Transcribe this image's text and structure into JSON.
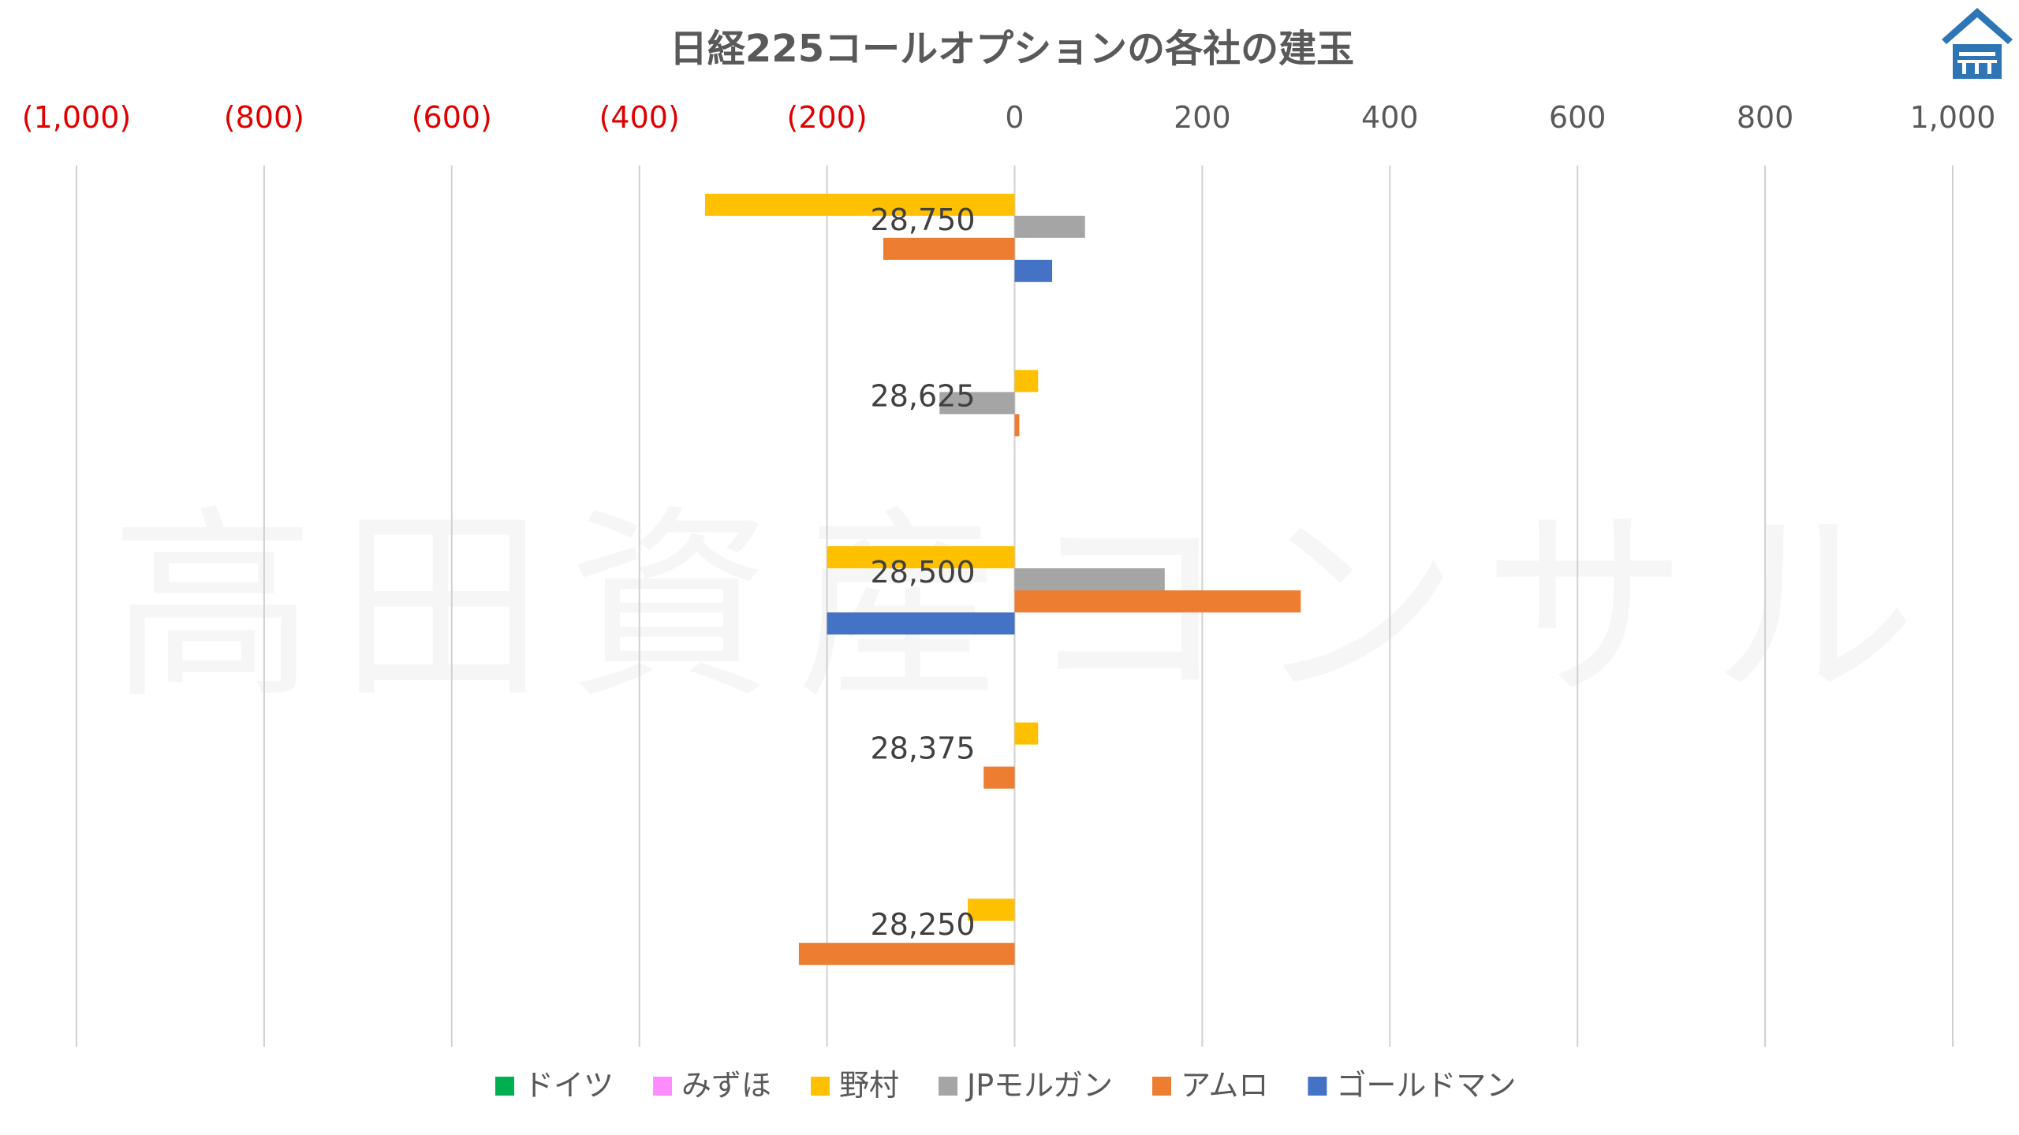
{
  "chart_data": {
    "type": "bar",
    "orientation": "horizontal",
    "title": "日経225コールオプションの各社の建玉",
    "watermark": "高田資産コンサル",
    "xlim": [
      -1000,
      1000
    ],
    "x_ticks": [
      {
        "value": -1000,
        "label": "(1,000)",
        "negative": true
      },
      {
        "value": -800,
        "label": "(800)",
        "negative": true
      },
      {
        "value": -600,
        "label": "(600)",
        "negative": true
      },
      {
        "value": -400,
        "label": "(400)",
        "negative": true
      },
      {
        "value": -200,
        "label": "(200)",
        "negative": true
      },
      {
        "value": 0,
        "label": "0",
        "negative": false
      },
      {
        "value": 200,
        "label": "200",
        "negative": false
      },
      {
        "value": 400,
        "label": "400",
        "negative": false
      },
      {
        "value": 600,
        "label": "600",
        "negative": false
      },
      {
        "value": 800,
        "label": "800",
        "negative": false
      },
      {
        "value": 1000,
        "label": "1,000",
        "negative": false
      }
    ],
    "axis_position": "top",
    "grid": true,
    "legend_position": "bottom",
    "categories": [
      "28,750",
      "28,625",
      "28,500",
      "28,375",
      "28,250"
    ],
    "series": [
      {
        "name": "ドイツ",
        "color": "#00B050",
        "values": [
          0,
          0,
          0,
          0,
          0
        ]
      },
      {
        "name": "みずほ",
        "color": "#FF8CFF",
        "values": [
          0,
          0,
          0,
          0,
          0
        ]
      },
      {
        "name": "野村",
        "color": "#FFC000",
        "values": [
          -330,
          25,
          -200,
          25,
          -50
        ]
      },
      {
        "name": "JPモルガン",
        "color": "#A5A5A5",
        "values": [
          75,
          -80,
          160,
          0,
          0
        ]
      },
      {
        "name": "アムロ",
        "color": "#ED7D31",
        "values": [
          -140,
          5,
          305,
          -33,
          -230
        ]
      },
      {
        "name": "ゴールドマン",
        "color": "#4472C4",
        "values": [
          40,
          0,
          -200,
          0,
          0
        ]
      }
    ],
    "colors": {
      "negative_tick": "#E00000",
      "positive_tick": "#595959",
      "title": "#595959",
      "grid": "#D0D0D0",
      "logo": "#2E75B6"
    }
  }
}
